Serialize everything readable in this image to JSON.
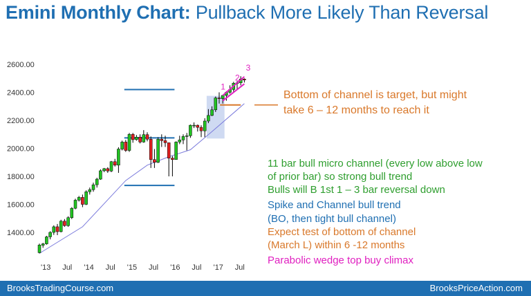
{
  "title": {
    "lead": "Emini Monthly Chart:",
    "rest": "Pullback More Likely Than Reversal"
  },
  "annotations": {
    "target": [
      "Bottom of channel is target, but might",
      "take 6 – 12 months to reach it"
    ],
    "notes": [
      {
        "text": "11 bar bull micro channel (every low above low",
        "color": "#2e9e2e"
      },
      {
        "text": "of prior bar) so strong bull trend",
        "color": "#2e9e2e"
      },
      {
        "text": "Bulls will B 1st 1 – 3 bar reversal down",
        "color": "#2e9e2e"
      },
      {
        "text": "Spike and Channel bull trend",
        "color": "#1f6fb2"
      },
      {
        "text": "(BO, then tight bull channel)",
        "color": "#1f6fb2"
      },
      {
        "text": "Expect test of bottom of channel",
        "color": "#d9782a"
      },
      {
        "text": "(March L) within 6 -12 months",
        "color": "#d9782a"
      },
      {
        "text": "Parabolic wedge top buy climax",
        "color": "#e020c0"
      }
    ],
    "wedge_labels": [
      "1",
      "2",
      "3"
    ]
  },
  "footer": {
    "left": "BrooksTradingCourse.com",
    "right": "BrooksPriceAction.com"
  },
  "colors": {
    "up": "#22c322",
    "down": "#e02020",
    "ma": "#7b7bdc",
    "level_line": "#1f6fb2",
    "channel": "#e020c0",
    "target": "#d9782a",
    "spike_box": "#c7d4f0"
  },
  "chart_data": {
    "type": "candlestick",
    "title": "Emini Monthly Chart: Pullback More Likely Than Reversal",
    "xlabel": "",
    "ylabel": "",
    "ylim": [
      1250,
      2650
    ],
    "y_ticks": [
      1400,
      1600,
      1800,
      2000,
      2200,
      2400,
      2600
    ],
    "y_tick_labels": [
      "1400.00",
      "1600.00",
      "1800.00",
      "2000.00",
      "2200.00",
      "2400.00",
      "2600.00"
    ],
    "x_tick_labels": [
      {
        "label": "'13",
        "index": 0
      },
      {
        "label": "Jul",
        "index": 6
      },
      {
        "label": "'14",
        "index": 12
      },
      {
        "label": "Jul",
        "index": 18
      },
      {
        "label": "'15",
        "index": 24
      },
      {
        "label": "Jul",
        "index": 30
      },
      {
        "label": "'16",
        "index": 36
      },
      {
        "label": "Jul",
        "index": 42
      },
      {
        "label": "'17",
        "index": 48
      },
      {
        "label": "Jul",
        "index": 54
      }
    ],
    "ohlc": [
      [
        1255,
        1320,
        1250,
        1310
      ],
      [
        1308,
        1325,
        1290,
        1318
      ],
      [
        1318,
        1375,
        1312,
        1368
      ],
      [
        1368,
        1408,
        1350,
        1400
      ],
      [
        1400,
        1450,
        1382,
        1440
      ],
      [
        1440,
        1460,
        1380,
        1405
      ],
      [
        1405,
        1490,
        1400,
        1480
      ],
      [
        1480,
        1495,
        1440,
        1448
      ],
      [
        1448,
        1515,
        1440,
        1505
      ],
      [
        1505,
        1580,
        1495,
        1572
      ],
      [
        1572,
        1640,
        1565,
        1630
      ],
      [
        1630,
        1660,
        1620,
        1650
      ],
      [
        1650,
        1670,
        1580,
        1600
      ],
      [
        1600,
        1700,
        1595,
        1690
      ],
      [
        1690,
        1720,
        1670,
        1705
      ],
      [
        1705,
        1755,
        1690,
        1740
      ],
      [
        1740,
        1790,
        1720,
        1780
      ],
      [
        1780,
        1850,
        1775,
        1840
      ],
      [
        1840,
        1860,
        1830,
        1855
      ],
      [
        1855,
        1865,
        1825,
        1838
      ],
      [
        1838,
        1910,
        1830,
        1905
      ],
      [
        1905,
        1925,
        1870,
        1880
      ],
      [
        1880,
        2008,
        1825,
        1995
      ],
      [
        1995,
        2055,
        1985,
        2045
      ],
      [
        2045,
        2060,
        1975,
        1985
      ],
      [
        1985,
        2110,
        1975,
        2100
      ],
      [
        2100,
        2110,
        2040,
        2062
      ],
      [
        2062,
        2095,
        2055,
        2080
      ],
      [
        2080,
        2100,
        2035,
        2045
      ],
      [
        2045,
        2130,
        2040,
        2098
      ],
      [
        2098,
        2115,
        2050,
        2065
      ],
      [
        2065,
        2085,
        1860,
        1920
      ],
      [
        1920,
        1995,
        1860,
        1900
      ],
      [
        1900,
        2080,
        1895,
        2065
      ],
      [
        2065,
        2100,
        2010,
        2055
      ],
      [
        2055,
        2090,
        2010,
        2040
      ],
      [
        2040,
        2040,
        1800,
        1930
      ],
      [
        1930,
        1945,
        1800,
        1920
      ],
      [
        1920,
        2050,
        1920,
        2045
      ],
      [
        2045,
        2090,
        2030,
        2060
      ],
      [
        2060,
        2100,
        2030,
        2085
      ],
      [
        2085,
        2110,
        1985,
        2090
      ],
      [
        2090,
        2170,
        2075,
        2165
      ],
      [
        2165,
        2185,
        2145,
        2165
      ],
      [
        2165,
        2170,
        2120,
        2150
      ],
      [
        2150,
        2165,
        2080,
        2125
      ],
      [
        2125,
        2215,
        2080,
        2195
      ],
      [
        2195,
        2280,
        2180,
        2235
      ],
      [
        2235,
        2300,
        2230,
        2275
      ],
      [
        2275,
        2370,
        2260,
        2360
      ],
      [
        2360,
        2400,
        2320,
        2355
      ],
      [
        2355,
        2370,
        2320,
        2378
      ],
      [
        2378,
        2408,
        2340,
        2400
      ],
      [
        2400,
        2450,
        2390,
        2420
      ],
      [
        2420,
        2475,
        2405,
        2465
      ],
      [
        2465,
        2480,
        2420,
        2468
      ],
      [
        2468,
        2515,
        2450,
        2495
      ],
      [
        2495,
        2500,
        2470,
        2488
      ]
    ],
    "moving_average": {
      "points": [
        [
          0,
          1250
        ],
        [
          12,
          1440
        ],
        [
          24,
          1770
        ],
        [
          30,
          1880
        ],
        [
          36,
          1940
        ],
        [
          42,
          1990
        ],
        [
          48,
          2120
        ],
        [
          55,
          2275
        ],
        [
          57,
          2320
        ]
      ]
    },
    "horizontal_levels": [
      {
        "value": 2420,
        "start": 24,
        "end": 37
      },
      {
        "value": 2075,
        "start": 24,
        "end": 37
      },
      {
        "value": 1735,
        "start": 24,
        "end": 37
      }
    ],
    "spike_box": {
      "start": 47,
      "end": 51,
      "low": 2070,
      "high": 2375
    },
    "wedge_channel": [
      [
        51,
        2340
      ],
      [
        57,
        2460
      ],
      [
        51,
        2378
      ],
      [
        57,
        2512
      ]
    ],
    "target_line": [
      [
        51,
        2310
      ],
      [
        56,
        2310
      ]
    ]
  }
}
